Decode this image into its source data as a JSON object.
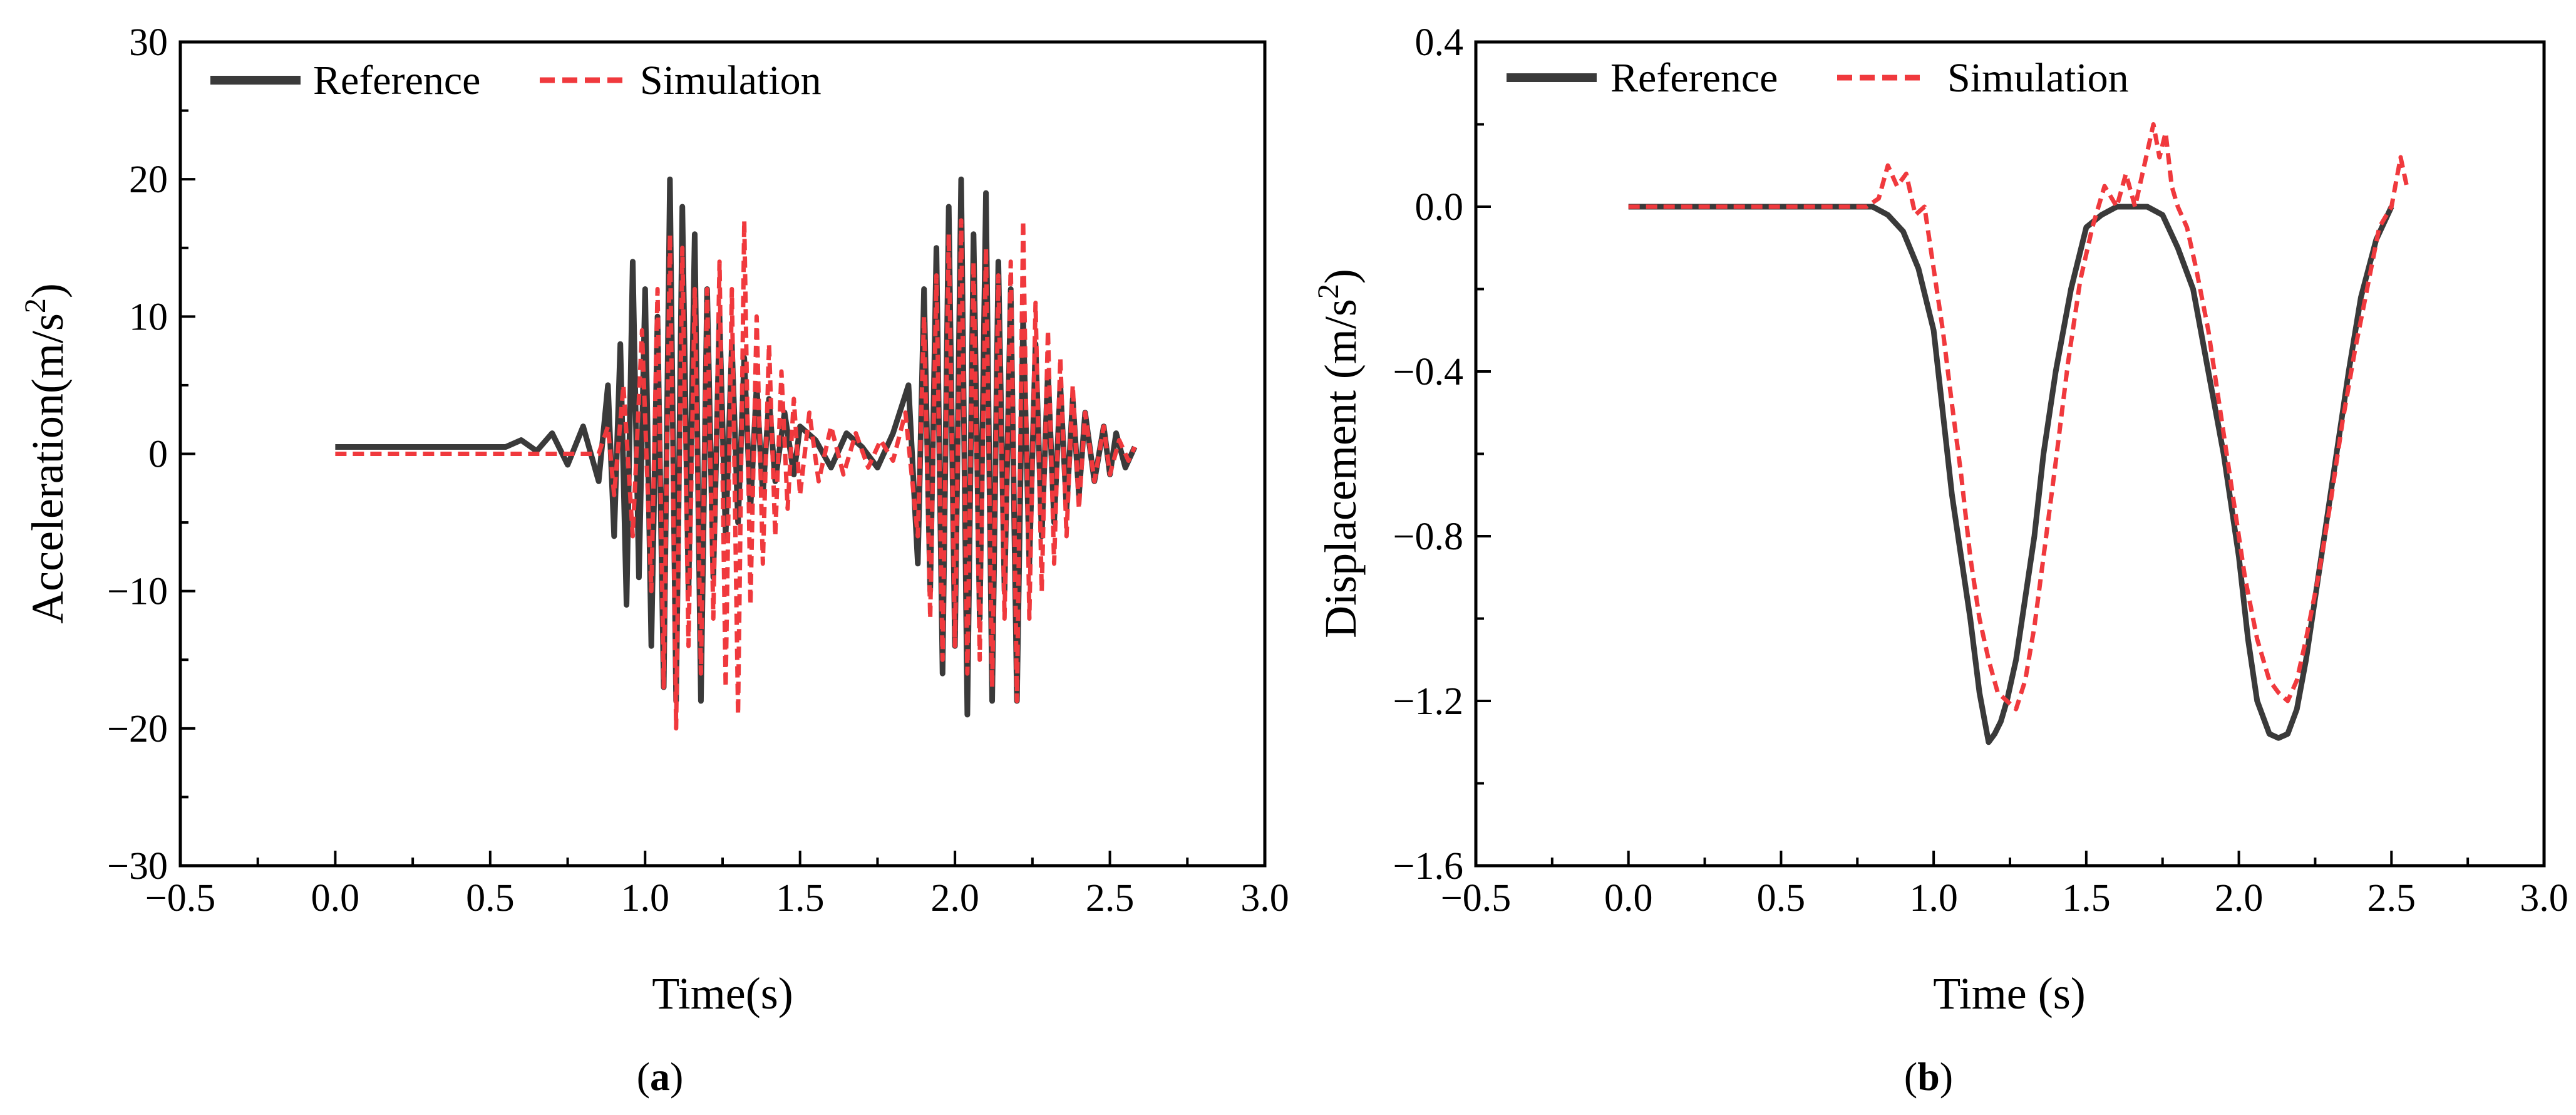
{
  "chart_data": [
    {
      "type": "line",
      "panel_label": "(a)",
      "panel_letter": "a",
      "xlabel": "Time(s)",
      "ylabel_main": "Acceleration(m/s",
      "ylabel_sup": "2",
      "ylabel_end": ")",
      "xlim": [
        -0.5,
        3.0
      ],
      "ylim": [
        -30,
        30
      ],
      "xticks": [
        -0.5,
        0.0,
        0.5,
        1.0,
        1.5,
        2.0,
        2.5,
        3.0
      ],
      "xtick_labels": [
        "−0.5",
        "0.0",
        "0.5",
        "1.0",
        "1.5",
        "2.0",
        "2.5",
        "3.0"
      ],
      "yticks": [
        -30,
        -20,
        -10,
        0,
        10,
        20,
        30
      ],
      "ytick_labels": [
        "−30",
        "−20",
        "−10",
        "0",
        "10",
        "20",
        "30"
      ],
      "legend": {
        "placement": "top-left",
        "entries": [
          "Reference",
          "Simulation"
        ]
      },
      "series": [
        {
          "name": "Reference",
          "color": "#3a3a3a",
          "style": "solid",
          "x": [
            0.0,
            0.55,
            0.6,
            0.65,
            0.7,
            0.75,
            0.8,
            0.85,
            0.88,
            0.9,
            0.92,
            0.94,
            0.96,
            0.98,
            1.0,
            1.02,
            1.04,
            1.06,
            1.08,
            1.1,
            1.12,
            1.14,
            1.16,
            1.18,
            1.2,
            1.22,
            1.24,
            1.26,
            1.28,
            1.3,
            1.32,
            1.34,
            1.36,
            1.38,
            1.4,
            1.42,
            1.45,
            1.48,
            1.5,
            1.55,
            1.6,
            1.65,
            1.7,
            1.75,
            1.8,
            1.85,
            1.88,
            1.9,
            1.92,
            1.94,
            1.96,
            1.98,
            2.0,
            2.02,
            2.04,
            2.06,
            2.08,
            2.1,
            2.12,
            2.14,
            2.16,
            2.18,
            2.2,
            2.22,
            2.24,
            2.26,
            2.28,
            2.3,
            2.32,
            2.34,
            2.36,
            2.38,
            2.4,
            2.42,
            2.45,
            2.48,
            2.5,
            2.52,
            2.55,
            2.58
          ],
          "values": [
            0.5,
            0.5,
            1.0,
            0.2,
            1.5,
            -0.8,
            2.0,
            -2.0,
            5.0,
            -6.0,
            8.0,
            -11.0,
            14.0,
            -9.0,
            12.0,
            -14.0,
            10.0,
            -17.0,
            20.0,
            -18.0,
            18.0,
            -10.0,
            16.0,
            -18.0,
            12.0,
            -9.0,
            10.0,
            -6.0,
            8.0,
            -5.0,
            7.0,
            -4.0,
            5.0,
            -3.0,
            4.0,
            -2.0,
            3.0,
            -1.5,
            2.0,
            1.0,
            -1.0,
            1.5,
            0.5,
            -1.0,
            1.5,
            5.0,
            -8.0,
            12.0,
            -10.0,
            15.0,
            -16.0,
            18.0,
            -14.0,
            20.0,
            -19.0,
            16.0,
            -12.0,
            19.0,
            -18.0,
            14.0,
            -10.0,
            12.0,
            -18.0,
            10.0,
            -8.0,
            8.0,
            -6.0,
            6.0,
            -5.0,
            5.0,
            -4.0,
            4.0,
            -3.0,
            3.0,
            -2.0,
            2.0,
            -1.5,
            1.5,
            -1.0,
            0.5
          ]
        },
        {
          "name": "Simulation",
          "color": "#f0393d",
          "style": "dashed",
          "x": [
            0.0,
            0.85,
            0.88,
            0.9,
            0.93,
            0.96,
            0.99,
            1.02,
            1.04,
            1.06,
            1.08,
            1.1,
            1.12,
            1.14,
            1.16,
            1.18,
            1.2,
            1.22,
            1.24,
            1.26,
            1.28,
            1.3,
            1.32,
            1.34,
            1.36,
            1.38,
            1.4,
            1.42,
            1.44,
            1.46,
            1.48,
            1.5,
            1.53,
            1.56,
            1.6,
            1.64,
            1.68,
            1.72,
            1.76,
            1.8,
            1.84,
            1.88,
            1.9,
            1.92,
            1.94,
            1.96,
            1.98,
            2.0,
            2.02,
            2.04,
            2.06,
            2.08,
            2.1,
            2.12,
            2.14,
            2.16,
            2.18,
            2.2,
            2.22,
            2.24,
            2.26,
            2.28,
            2.3,
            2.32,
            2.34,
            2.36,
            2.38,
            2.4,
            2.42,
            2.45,
            2.48,
            2.5,
            2.53,
            2.56,
            2.58
          ],
          "values": [
            0.0,
            0.0,
            2.0,
            -3.0,
            5.0,
            -6.0,
            9.0,
            -10.0,
            12.0,
            -17.0,
            16.0,
            -20.0,
            15.0,
            -14.0,
            12.0,
            -16.0,
            12.0,
            -12.0,
            14.0,
            -17.0,
            12.0,
            -19.0,
            17.0,
            -11.0,
            10.0,
            -8.0,
            8.0,
            -6.0,
            6.0,
            -4.0,
            4.0,
            -3.0,
            3.0,
            -2.0,
            2.0,
            -1.5,
            1.5,
            -1.0,
            1.0,
            -0.5,
            3.0,
            -6.0,
            10.0,
            -12.0,
            13.0,
            -15.0,
            16.0,
            -14.0,
            17.0,
            -16.0,
            14.0,
            -15.0,
            15.0,
            -17.0,
            13.0,
            -12.0,
            14.0,
            -18.0,
            17.0,
            -12.0,
            11.0,
            -10.0,
            9.0,
            -8.0,
            7.0,
            -6.0,
            5.0,
            -4.0,
            3.0,
            -2.0,
            2.0,
            -1.5,
            1.0,
            -0.5,
            0.5
          ]
        }
      ]
    },
    {
      "type": "line",
      "panel_label": "(b)",
      "panel_letter": "b",
      "xlabel": "Time (s)",
      "ylabel_main": "Displacement (m/s",
      "ylabel_sup": "2",
      "ylabel_end": ")",
      "xlim": [
        -0.5,
        3.0
      ],
      "ylim": [
        -1.6,
        0.4
      ],
      "xticks": [
        -0.5,
        0.0,
        0.5,
        1.0,
        1.5,
        2.0,
        2.5,
        3.0
      ],
      "xtick_labels": [
        "−0.5",
        "0.0",
        "0.5",
        "1.0",
        "1.5",
        "2.0",
        "2.5",
        "3.0"
      ],
      "yticks": [
        -1.6,
        -1.2,
        -0.8,
        -0.4,
        0.0,
        0.4
      ],
      "ytick_labels": [
        "−1.6",
        "−1.2",
        "−0.8",
        "−0.4",
        "0.0",
        "0.4"
      ],
      "legend": {
        "placement": "top-left",
        "entries": [
          "Reference",
          "Simulation"
        ]
      },
      "series": [
        {
          "name": "Reference",
          "color": "#3a3a3a",
          "style": "solid",
          "x": [
            0.0,
            0.8,
            0.85,
            0.9,
            0.95,
            1.0,
            1.03,
            1.06,
            1.09,
            1.12,
            1.15,
            1.18,
            1.2,
            1.22,
            1.24,
            1.27,
            1.3,
            1.33,
            1.36,
            1.4,
            1.45,
            1.5,
            1.55,
            1.6,
            1.65,
            1.7,
            1.75,
            1.8,
            1.85,
            1.9,
            1.95,
            2.0,
            2.03,
            2.06,
            2.1,
            2.13,
            2.16,
            2.19,
            2.22,
            2.25,
            2.28,
            2.32,
            2.36,
            2.4,
            2.45,
            2.5
          ],
          "values": [
            0.0,
            0.0,
            -0.02,
            -0.06,
            -0.15,
            -0.3,
            -0.5,
            -0.7,
            -0.85,
            -1.0,
            -1.18,
            -1.3,
            -1.28,
            -1.25,
            -1.2,
            -1.1,
            -0.95,
            -0.8,
            -0.6,
            -0.4,
            -0.2,
            -0.05,
            -0.02,
            0.0,
            0.0,
            0.0,
            -0.02,
            -0.1,
            -0.2,
            -0.4,
            -0.6,
            -0.85,
            -1.05,
            -1.2,
            -1.28,
            -1.29,
            -1.28,
            -1.22,
            -1.1,
            -0.95,
            -0.8,
            -0.6,
            -0.4,
            -0.22,
            -0.08,
            0.0
          ]
        },
        {
          "name": "Simulation",
          "color": "#f0393d",
          "style": "dashed",
          "x": [
            0.0,
            0.78,
            0.82,
            0.85,
            0.88,
            0.91,
            0.94,
            0.97,
            1.0,
            1.03,
            1.06,
            1.09,
            1.12,
            1.15,
            1.18,
            1.21,
            1.24,
            1.27,
            1.3,
            1.33,
            1.36,
            1.4,
            1.44,
            1.48,
            1.52,
            1.56,
            1.6,
            1.63,
            1.66,
            1.69,
            1.72,
            1.74,
            1.76,
            1.78,
            1.8,
            1.83,
            1.86,
            1.9,
            1.94,
            1.98,
            2.02,
            2.06,
            2.1,
            2.13,
            2.16,
            2.19,
            2.22,
            2.26,
            2.3,
            2.34,
            2.38,
            2.42,
            2.46,
            2.5,
            2.53,
            2.55
          ],
          "values": [
            0.0,
            0.0,
            0.02,
            0.1,
            0.05,
            0.08,
            -0.02,
            0.0,
            -0.15,
            -0.3,
            -0.48,
            -0.65,
            -0.85,
            -1.0,
            -1.1,
            -1.18,
            -1.2,
            -1.22,
            -1.15,
            -1.02,
            -0.85,
            -0.62,
            -0.38,
            -0.18,
            -0.05,
            0.05,
            0.0,
            0.08,
            0.0,
            0.1,
            0.2,
            0.12,
            0.18,
            0.05,
            0.0,
            -0.05,
            -0.15,
            -0.3,
            -0.5,
            -0.7,
            -0.9,
            -1.05,
            -1.15,
            -1.18,
            -1.2,
            -1.15,
            -1.05,
            -0.9,
            -0.72,
            -0.52,
            -0.35,
            -0.2,
            -0.05,
            0.0,
            0.12,
            0.05
          ]
        }
      ]
    }
  ]
}
